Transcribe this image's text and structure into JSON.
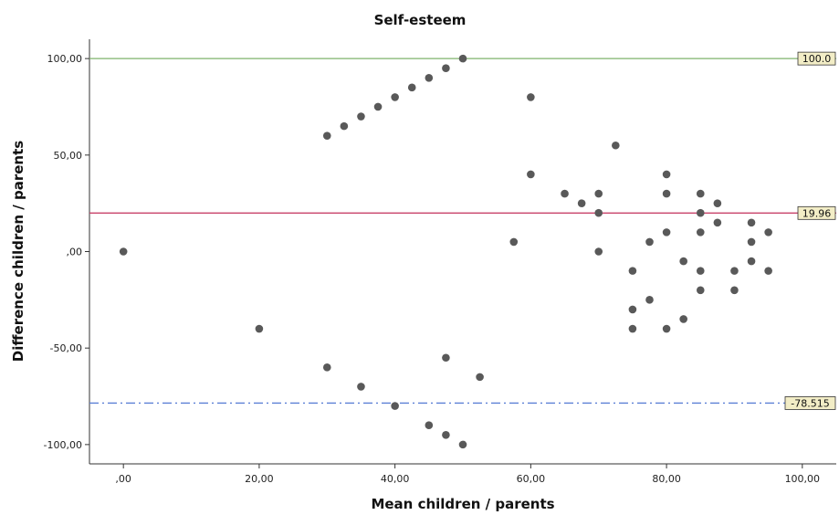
{
  "chart_data": {
    "type": "scatter",
    "title": "Self-esteem",
    "xlabel": "Mean children / parents",
    "ylabel": "Difference children / parents",
    "xlim": [
      -5,
      105
    ],
    "ylim": [
      -110,
      110
    ],
    "x_ticks": [
      {
        "value": 0,
        "label": ",00"
      },
      {
        "value": 20,
        "label": "20,00"
      },
      {
        "value": 40,
        "label": "40,00"
      },
      {
        "value": 60,
        "label": "60,00"
      },
      {
        "value": 80,
        "label": "80,00"
      },
      {
        "value": 100,
        "label": "100,00"
      }
    ],
    "y_ticks": [
      {
        "value": 100,
        "label": "100,00"
      },
      {
        "value": 50,
        "label": "50,00"
      },
      {
        "value": 0,
        "label": ",00"
      },
      {
        "value": -50,
        "label": "-50,00"
      },
      {
        "value": -100,
        "label": "-100,00"
      }
    ],
    "grid": false,
    "reference_lines": [
      {
        "value": 100,
        "label": "100.0",
        "color": "#7fb36b",
        "style": "solid"
      },
      {
        "value": 19.96,
        "label": "19.96",
        "color": "#c8426a",
        "style": "solid"
      },
      {
        "value": -78.515,
        "label": "-78.515",
        "color": "#5b7fd6",
        "style": "dashdot"
      }
    ],
    "point_color": "#595959",
    "label_box_color": "#f2edc6",
    "points": [
      {
        "x": 0,
        "y": 0
      },
      {
        "x": 20,
        "y": -40
      },
      {
        "x": 30,
        "y": 60
      },
      {
        "x": 32.5,
        "y": 65
      },
      {
        "x": 35,
        "y": 70
      },
      {
        "x": 37.5,
        "y": 75
      },
      {
        "x": 40,
        "y": 80
      },
      {
        "x": 42.5,
        "y": 85
      },
      {
        "x": 45,
        "y": 90
      },
      {
        "x": 47.5,
        "y": 95
      },
      {
        "x": 50,
        "y": 100
      },
      {
        "x": 30,
        "y": -60
      },
      {
        "x": 35,
        "y": -70
      },
      {
        "x": 40,
        "y": -80
      },
      {
        "x": 45,
        "y": -90
      },
      {
        "x": 47.5,
        "y": -95
      },
      {
        "x": 50,
        "y": -100
      },
      {
        "x": 47.5,
        "y": -55
      },
      {
        "x": 52.5,
        "y": -65
      },
      {
        "x": 57.5,
        "y": 5
      },
      {
        "x": 60,
        "y": 80
      },
      {
        "x": 60,
        "y": 40
      },
      {
        "x": 65,
        "y": 30
      },
      {
        "x": 67.5,
        "y": 25
      },
      {
        "x": 70,
        "y": 30
      },
      {
        "x": 70,
        "y": 20
      },
      {
        "x": 70,
        "y": 0
      },
      {
        "x": 72.5,
        "y": 55
      },
      {
        "x": 75,
        "y": -10
      },
      {
        "x": 75,
        "y": -30
      },
      {
        "x": 75,
        "y": -40
      },
      {
        "x": 77.5,
        "y": 5
      },
      {
        "x": 77.5,
        "y": -25
      },
      {
        "x": 80,
        "y": 40
      },
      {
        "x": 80,
        "y": 30
      },
      {
        "x": 80,
        "y": 10
      },
      {
        "x": 80,
        "y": -40
      },
      {
        "x": 82.5,
        "y": -5
      },
      {
        "x": 82.5,
        "y": -35
      },
      {
        "x": 85,
        "y": 30
      },
      {
        "x": 85,
        "y": 20
      },
      {
        "x": 85,
        "y": 10
      },
      {
        "x": 85,
        "y": -10
      },
      {
        "x": 85,
        "y": -20
      },
      {
        "x": 87.5,
        "y": 25
      },
      {
        "x": 87.5,
        "y": 15
      },
      {
        "x": 90,
        "y": -10
      },
      {
        "x": 90,
        "y": -20
      },
      {
        "x": 92.5,
        "y": 15
      },
      {
        "x": 92.5,
        "y": 5
      },
      {
        "x": 92.5,
        "y": -5
      },
      {
        "x": 95,
        "y": 10
      },
      {
        "x": 95,
        "y": -10
      }
    ]
  }
}
